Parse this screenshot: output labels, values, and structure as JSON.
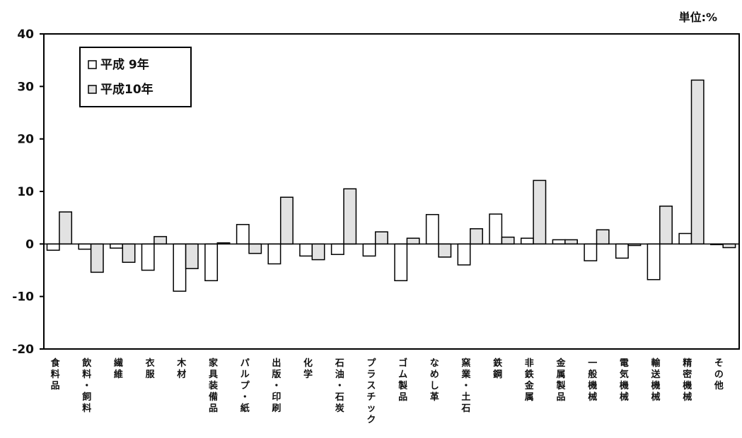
{
  "unit_label": "単位:%",
  "chart_data": {
    "type": "bar",
    "ylim": [
      -20,
      40
    ],
    "yticks": [
      "40",
      "30",
      "20",
      "10",
      "0",
      "-10",
      "-20"
    ],
    "legend_position": "top-left",
    "categories": [
      "食料品",
      "飲料・飼料",
      "繊維",
      "衣服",
      "木材",
      "家具装備品",
      "パルプ・紙",
      "出版・印刷",
      "化学",
      "石油・石炭",
      "プラスチック",
      "ゴム製品",
      "なめし革",
      "窯業・土石",
      "鉄鋼",
      "非鉄金属",
      "金属製品",
      "一般機械",
      "電気機械",
      "輸送機械",
      "精密機械",
      "その他"
    ],
    "series": [
      {
        "name": "平成 9年",
        "color": "#ffffff",
        "values": [
          -1.2,
          -1.0,
          -0.8,
          -5.0,
          -9.0,
          -7.0,
          3.7,
          -3.8,
          -2.3,
          -2.0,
          -2.3,
          -7.0,
          5.6,
          -4.0,
          5.7,
          1.1,
          0.8,
          -3.2,
          -2.7,
          -6.8,
          2.0,
          0.0
        ]
      },
      {
        "name": "平成10年",
        "color": "#e2e2e2",
        "values": [
          6.1,
          -5.4,
          -3.5,
          1.4,
          -4.7,
          0.2,
          -1.8,
          8.9,
          -3.0,
          10.5,
          2.3,
          1.1,
          -2.5,
          2.9,
          1.3,
          12.1,
          0.8,
          2.7,
          -0.3,
          7.2,
          31.2,
          -0.7
        ]
      }
    ]
  }
}
